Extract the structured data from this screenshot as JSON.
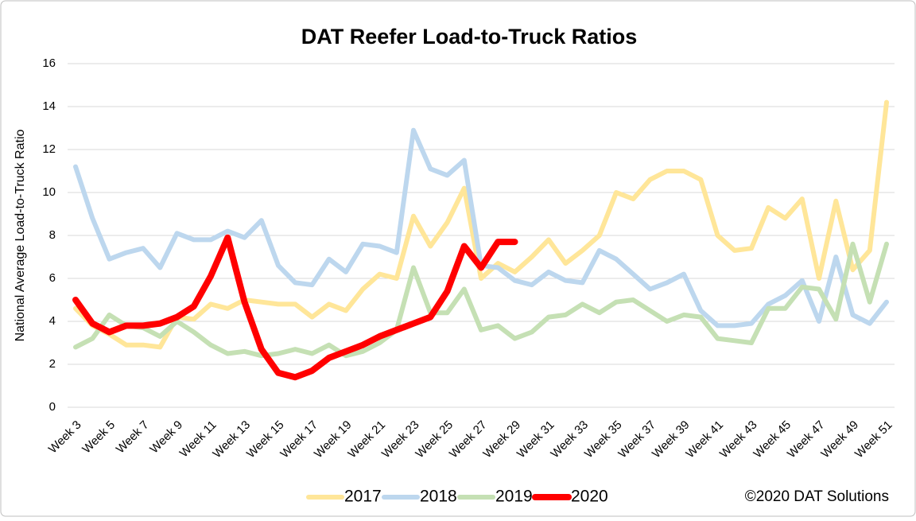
{
  "chart_data": {
    "type": "line",
    "title": "DAT Reefer Load-to-Truck Ratios",
    "y_label": "National Average Load-to-Truck Ratio",
    "source": "©2020 DAT Solutions",
    "categories": [
      "Week 3",
      null,
      "Week 5",
      null,
      "Week 7",
      null,
      "Week 9",
      null,
      "Week 11",
      null,
      "Week 13",
      null,
      "Week 15",
      null,
      "Week 17",
      null,
      "Week 19",
      null,
      "Week 21",
      null,
      "Week 23",
      null,
      "Week 25",
      null,
      "Week 27",
      null,
      "Week 29",
      null,
      "Week 31",
      null,
      "Week 33",
      null,
      "Week 35",
      null,
      "Week 37",
      null,
      "Week 39",
      null,
      "Week 41",
      null,
      "Week 43",
      null,
      "Week 45",
      null,
      "Week 47",
      null,
      "Week 49",
      null,
      "Week 51"
    ],
    "series": [
      {
        "name": "2017",
        "color": "#ffe699",
        "width": 6,
        "values": [
          4.6,
          3.8,
          3.4,
          2.9,
          2.9,
          2.8,
          4.2,
          4.1,
          4.8,
          4.6,
          5.0,
          4.9,
          4.8,
          4.8,
          4.2,
          4.8,
          4.5,
          5.5,
          6.2,
          6.0,
          8.9,
          7.5,
          8.6,
          10.2,
          6.0,
          6.7,
          6.3,
          7.0,
          7.8,
          6.7,
          7.3,
          8.0,
          10.0,
          9.7,
          10.6,
          11.0,
          11.0,
          10.6,
          8.0,
          7.3,
          7.4,
          9.3,
          8.8,
          9.7,
          6.0,
          9.6,
          6.4,
          7.3,
          14.2
        ]
      },
      {
        "name": "2018",
        "color": "#bdd7ee",
        "width": 6,
        "values": [
          11.2,
          8.8,
          6.9,
          7.2,
          7.4,
          6.5,
          8.1,
          7.8,
          7.8,
          8.2,
          7.9,
          8.7,
          6.6,
          5.8,
          5.7,
          6.9,
          6.3,
          7.6,
          7.5,
          7.2,
          12.9,
          11.1,
          10.8,
          11.5,
          6.6,
          6.5,
          5.9,
          5.7,
          6.3,
          5.9,
          5.8,
          7.3,
          6.9,
          6.2,
          5.5,
          5.8,
          6.2,
          4.5,
          3.8,
          3.8,
          3.9,
          4.8,
          5.2,
          5.9,
          4.0,
          7.0,
          4.3,
          3.9,
          4.9
        ]
      },
      {
        "name": "2019",
        "color": "#c5e0b4",
        "width": 6,
        "values": [
          2.8,
          3.2,
          4.3,
          3.8,
          3.7,
          3.3,
          4.0,
          3.5,
          2.9,
          2.5,
          2.6,
          2.4,
          2.5,
          2.7,
          2.5,
          2.9,
          2.4,
          2.6,
          3.0,
          3.6,
          6.5,
          4.4,
          4.4,
          5.5,
          3.6,
          3.8,
          3.2,
          3.5,
          4.2,
          4.3,
          4.8,
          4.4,
          4.9,
          5.0,
          4.5,
          4.0,
          4.3,
          4.2,
          3.2,
          3.1,
          3.0,
          4.6,
          4.6,
          5.6,
          5.5,
          4.1,
          7.6,
          4.9,
          7.6
        ]
      },
      {
        "name": "2020",
        "color": "#ff0000",
        "width": 8,
        "values": [
          5.0,
          3.9,
          3.5,
          3.8,
          3.8,
          3.9,
          4.2,
          4.7,
          6.1,
          7.9,
          4.9,
          2.7,
          1.6,
          1.4,
          1.7,
          2.3,
          2.6,
          2.9,
          3.3,
          3.6,
          3.9,
          4.2,
          5.4,
          7.5,
          6.5,
          7.7,
          7.7,
          null,
          null,
          null,
          null,
          null,
          null,
          null,
          null,
          null,
          null,
          null,
          null,
          null,
          null,
          null,
          null,
          null,
          null,
          null,
          null,
          null,
          null
        ]
      }
    ],
    "ylim": [
      0,
      16
    ],
    "yticks": [
      0,
      2,
      4,
      6,
      8,
      10,
      12,
      14,
      16
    ],
    "grid": true,
    "legend": "bottom"
  }
}
